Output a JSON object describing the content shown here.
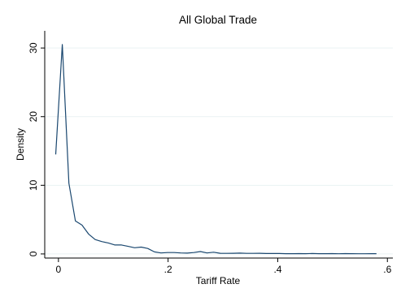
{
  "chart_data": {
    "type": "line",
    "title": "All Global Trade",
    "xlabel": "Tariff Rate",
    "ylabel": "Density",
    "xlim": [
      -0.025,
      0.61
    ],
    "ylim": [
      -0.6,
      32.5
    ],
    "x_ticks": [
      {
        "value": 0,
        "label": "0"
      },
      {
        "value": 0.2,
        "label": ".2"
      },
      {
        "value": 0.4,
        "label": ".4"
      },
      {
        "value": 0.6,
        "label": ".6"
      }
    ],
    "y_ticks": [
      {
        "value": 0,
        "label": "0"
      },
      {
        "value": 10,
        "label": "10"
      },
      {
        "value": 20,
        "label": "20"
      },
      {
        "value": 30,
        "label": "30"
      }
    ],
    "grid": "horizontal",
    "series": [
      {
        "color": "#1a476f",
        "x": [
          -0.005,
          0.007,
          0.019,
          0.031,
          0.043,
          0.055,
          0.067,
          0.079,
          0.091,
          0.103,
          0.115,
          0.127,
          0.139,
          0.151,
          0.163,
          0.175,
          0.187,
          0.199,
          0.211,
          0.223,
          0.235,
          0.247,
          0.259,
          0.271,
          0.283,
          0.295,
          0.307,
          0.319,
          0.331,
          0.343,
          0.355,
          0.367,
          0.379,
          0.391,
          0.403,
          0.415,
          0.427,
          0.439,
          0.451,
          0.463,
          0.475,
          0.487,
          0.499,
          0.511,
          0.523,
          0.535,
          0.547,
          0.559,
          0.571,
          0.58
        ],
        "values": [
          14.5,
          30.5,
          10.3,
          4.8,
          4.2,
          2.9,
          2.1,
          1.8,
          1.6,
          1.3,
          1.3,
          1.1,
          0.9,
          1.0,
          0.8,
          0.3,
          0.15,
          0.2,
          0.2,
          0.15,
          0.12,
          0.2,
          0.35,
          0.15,
          0.25,
          0.1,
          0.08,
          0.1,
          0.12,
          0.08,
          0.08,
          0.1,
          0.06,
          0.06,
          0.06,
          0.04,
          0.04,
          0.05,
          0.04,
          0.06,
          0.04,
          0.04,
          0.05,
          0.03,
          0.05,
          0.04,
          0.03,
          0.03,
          0.04,
          0.04
        ]
      }
    ]
  }
}
